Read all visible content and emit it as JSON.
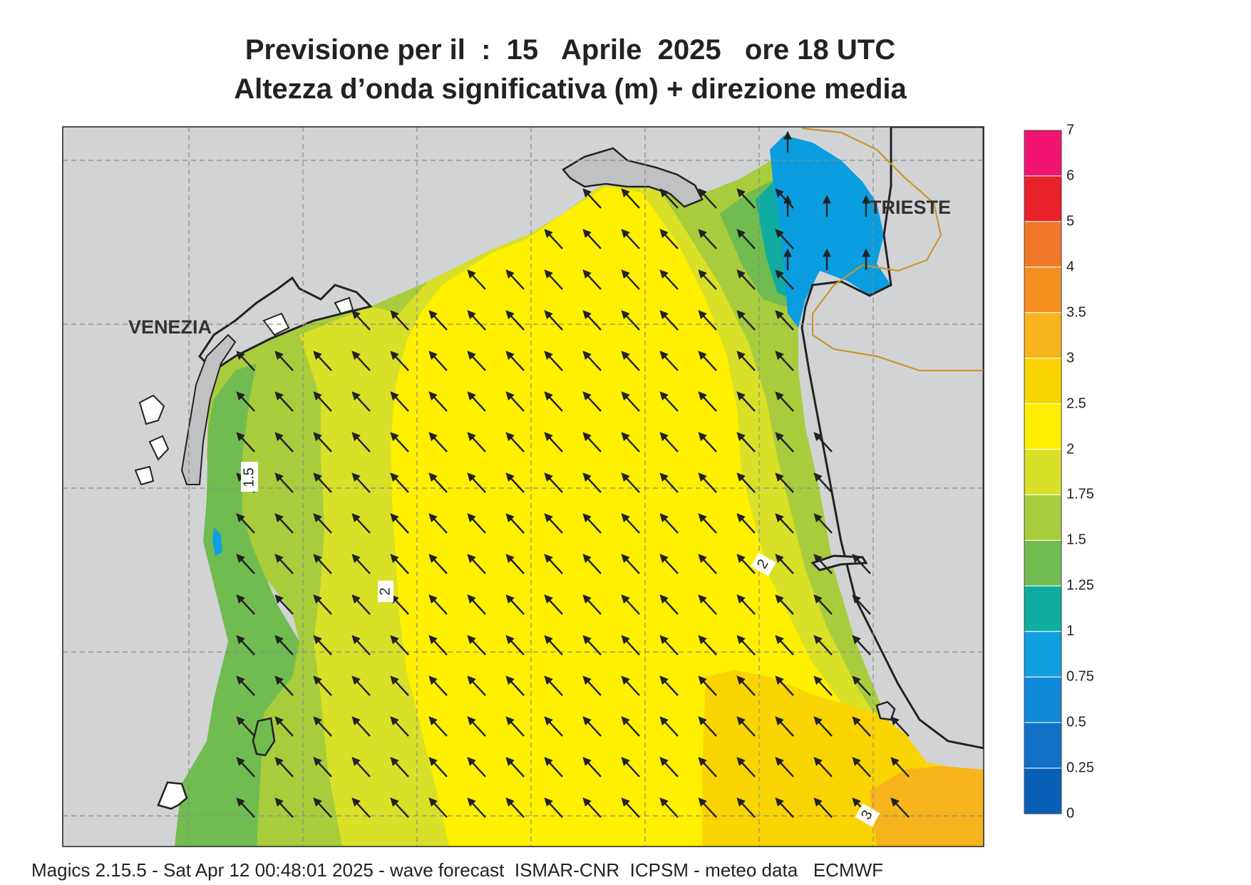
{
  "header": {
    "line1": "Previsione per il  :  15   Aprile  2025   ore 18 UTC",
    "line2": "Altezza d’onda significativa (m) + direzione media"
  },
  "map_labels": {
    "city_west": "VENEZIA",
    "city_east": "TRIESTE",
    "contour_labels": [
      "1.5",
      "2",
      "2",
      "3"
    ]
  },
  "legend": {
    "levels": [
      "7",
      "6",
      "5",
      "4",
      "3.5",
      "3",
      "2.5",
      "2",
      "1.75",
      "1.5",
      "1.25",
      "1",
      "0.75",
      "0.5",
      "0.25",
      "0"
    ],
    "colors": [
      "#f01470",
      "#e8202a",
      "#f07828",
      "#f59020",
      "#f7b41c",
      "#fad400",
      "#fff000",
      "#d8e028",
      "#a8cc3c",
      "#70bc50",
      "#10aca0",
      "#10a0e0",
      "#1088d8",
      "#1070c8",
      "#0a60b8"
    ]
  },
  "wave_field": {
    "mean_direction": "NW",
    "zone_colors": {
      "land": "#d2d3d5",
      "sea_low": "#0a9ee0",
      "sea_1": "#10aca0",
      "sea_1_25": "#70bc50",
      "sea_1_5": "#a8cc3c",
      "sea_1_75": "#d8e028",
      "sea_2": "#fff000",
      "sea_2_5": "#fad400",
      "sea_3": "#f7b41c"
    }
  },
  "footer": {
    "text": "Magics 2.15.5 - Sat Apr 12 00:48:01 2025 - wave forecast  ISMAR-CNR  ICPSM - meteo data   ECMWF"
  }
}
